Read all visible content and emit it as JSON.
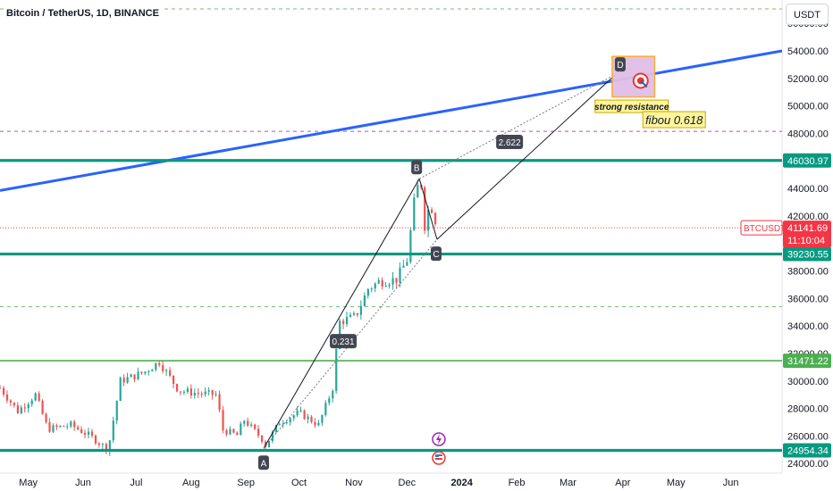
{
  "header": {
    "title": "Bitcoin / TetherUS, 1D, BINANCE",
    "currency_button": "USDT"
  },
  "colors": {
    "green_line": "#089981",
    "light_green_line": "#4caf50",
    "blue_trend": "#2962ff",
    "up_candle": "#26a69a",
    "down_candle": "#ef5350",
    "price_tag": "#f23645",
    "purple_dash": "#9c27b0"
  },
  "chart_data": {
    "type": "candlestick",
    "symbol": "BTCUSDT",
    "y_axis": {
      "range": [
        23300,
        57700
      ],
      "ticks": [
        24000,
        26000,
        28000,
        30000,
        32000,
        34000,
        36000,
        38000,
        40000,
        42000,
        44000,
        46000,
        48000,
        50000,
        52000,
        54000,
        56000
      ],
      "tick_labels": [
        "24000.00",
        "26000.00",
        "28000.00",
        "30000.00",
        "32000.00",
        "34000.00",
        "36000.00",
        "38000.00",
        "40000.00",
        "42000.00",
        "44000.00",
        "46000.00",
        "48000.00",
        "50000.00",
        "52000.00",
        "54000.00",
        "56000.00"
      ]
    },
    "x_axis": {
      "range": [
        "2023-04-15",
        "2024-06-30"
      ],
      "labels": [
        {
          "date": "2023-05-01",
          "text": "May"
        },
        {
          "date": "2023-06-01",
          "text": "Jun"
        },
        {
          "date": "2023-07-01",
          "text": "Jul"
        },
        {
          "date": "2023-08-01",
          "text": "Aug"
        },
        {
          "date": "2023-09-01",
          "text": "Sep"
        },
        {
          "date": "2023-10-01",
          "text": "Oct"
        },
        {
          "date": "2023-11-01",
          "text": "Nov"
        },
        {
          "date": "2023-12-01",
          "text": "Dec"
        },
        {
          "date": "2024-01-01",
          "text": "2024"
        },
        {
          "date": "2024-02-01",
          "text": "Feb"
        },
        {
          "date": "2024-03-01",
          "text": "Mar"
        },
        {
          "date": "2024-04-01",
          "text": "Apr"
        },
        {
          "date": "2024-05-01",
          "text": "May"
        },
        {
          "date": "2024-06-01",
          "text": "Jun"
        }
      ]
    },
    "price_path": [
      [
        "2023-04-15",
        29500
      ],
      [
        "2023-04-25",
        27800
      ],
      [
        "2023-05-05",
        29000
      ],
      [
        "2023-05-12",
        26500
      ],
      [
        "2023-05-25",
        26800
      ],
      [
        "2023-06-05",
        26000
      ],
      [
        "2023-06-15",
        25000
      ],
      [
        "2023-06-22",
        30000
      ],
      [
        "2023-07-05",
        30600
      ],
      [
        "2023-07-14",
        31400
      ],
      [
        "2023-07-25",
        29300
      ],
      [
        "2023-08-05",
        29100
      ],
      [
        "2023-08-16",
        29000
      ],
      [
        "2023-08-18",
        26500
      ],
      [
        "2023-08-28",
        26000
      ],
      [
        "2023-08-30",
        27300
      ],
      [
        "2023-09-10",
        25800
      ],
      [
        "2023-09-11",
        25100
      ],
      [
        "2023-09-20",
        27000
      ],
      [
        "2023-10-01",
        27700
      ],
      [
        "2023-10-12",
        26800
      ],
      [
        "2023-10-20",
        29500
      ],
      [
        "2023-10-23",
        33500
      ],
      [
        "2023-10-24",
        34300
      ],
      [
        "2023-11-02",
        34700
      ],
      [
        "2023-11-09",
        36700
      ],
      [
        "2023-11-15",
        37200
      ],
      [
        "2023-11-25",
        37400
      ],
      [
        "2023-12-01",
        38800
      ],
      [
        "2023-12-04",
        41900
      ],
      [
        "2023-12-06",
        44000
      ],
      [
        "2023-12-09",
        44300
      ],
      [
        "2023-12-11",
        41300
      ],
      [
        "2023-12-14",
        43000
      ],
      [
        "2023-12-17",
        41700
      ],
      [
        "2023-12-18",
        41141.69
      ]
    ],
    "horizontal_levels": [
      {
        "price": 46030.97,
        "label": "46030.97",
        "style": "green"
      },
      {
        "price": 39230.55,
        "label": "39230.55",
        "style": "green"
      },
      {
        "price": 31471.22,
        "label": "31471.22",
        "style": "light-green"
      },
      {
        "price": 24954.34,
        "label": "24954.34",
        "style": "green"
      },
      {
        "price": 48150,
        "style": "purple-dashed"
      },
      {
        "price": 57050,
        "style": "green-dashed"
      },
      {
        "price": 35400,
        "style": "green-dashed"
      }
    ],
    "trendline": {
      "start": [
        "2023-04-15",
        43850
      ],
      "end": [
        "2024-06-30",
        54000
      ]
    },
    "pattern_points": [
      {
        "label": "A",
        "date": "2023-09-11",
        "price": 25100
      },
      {
        "label": "B",
        "date": "2023-12-08",
        "price": 44700
      },
      {
        "label": "C",
        "date": "2023-12-18",
        "price": 40300
      },
      {
        "label": "D",
        "date": "2024-03-28",
        "price": 52300
      }
    ],
    "pattern_ratios": [
      {
        "text": "0.231",
        "date": "2023-10-26",
        "price": 32900
      },
      {
        "text": "2.622",
        "date": "2024-01-28",
        "price": 47380
      }
    ],
    "target_box": {
      "from": [
        "2024-03-26",
        53600
      ],
      "to": [
        "2024-04-19",
        50650
      ]
    },
    "annotations": [
      {
        "text": "strong resistance",
        "date": "2024-04-06",
        "price": 49970
      },
      {
        "text": "fibou 0.618",
        "date": "2024-04-30",
        "price": 49000
      }
    ],
    "last_price": {
      "symbol": "BTCUSDT",
      "price": "41141.69",
      "countdown": "11:10:04",
      "value": 41141.69
    }
  }
}
